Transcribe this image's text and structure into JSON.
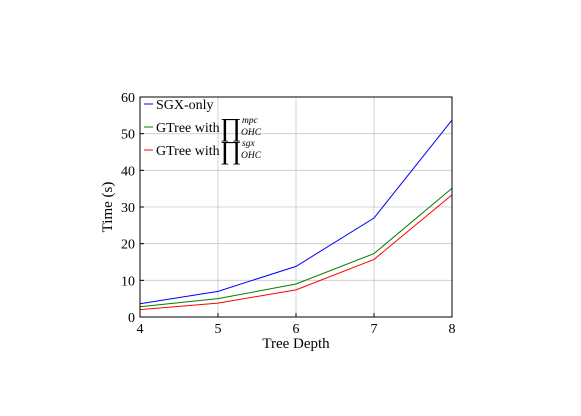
{
  "chart_data": {
    "type": "line",
    "title": "",
    "xlabel": "Tree Depth",
    "ylabel": "Time (s)",
    "x": [
      4,
      5,
      6,
      7,
      8
    ],
    "xlim": [
      4,
      8
    ],
    "ylim": [
      0,
      60
    ],
    "xticks": [
      "4",
      "5",
      "6",
      "7",
      "8"
    ],
    "yticks": [
      "0",
      "10",
      "20",
      "30",
      "40",
      "50",
      "60"
    ],
    "grid": true,
    "legend_position": "top-left",
    "series": [
      {
        "name": "SGX-only",
        "color": "#0000ff",
        "values": [
          3.6,
          7.0,
          13.8,
          27.0,
          53.7
        ]
      },
      {
        "name": "GTree with ∏ OHC mpc",
        "legend_prefix": "GTree with",
        "legend_symbol": "∏",
        "legend_superscript": "mpc",
        "legend_subscript": "OHC",
        "color": "#007f00",
        "values": [
          2.8,
          5.0,
          9.0,
          17.3,
          35.1
        ]
      },
      {
        "name": "GTree with ∏ OHC sgx",
        "legend_prefix": "GTree with",
        "legend_symbol": "∏",
        "legend_superscript": "sgx",
        "legend_subscript": "OHC",
        "color": "#ff0000",
        "values": [
          2.0,
          3.8,
          7.4,
          15.7,
          33.3
        ]
      }
    ]
  }
}
